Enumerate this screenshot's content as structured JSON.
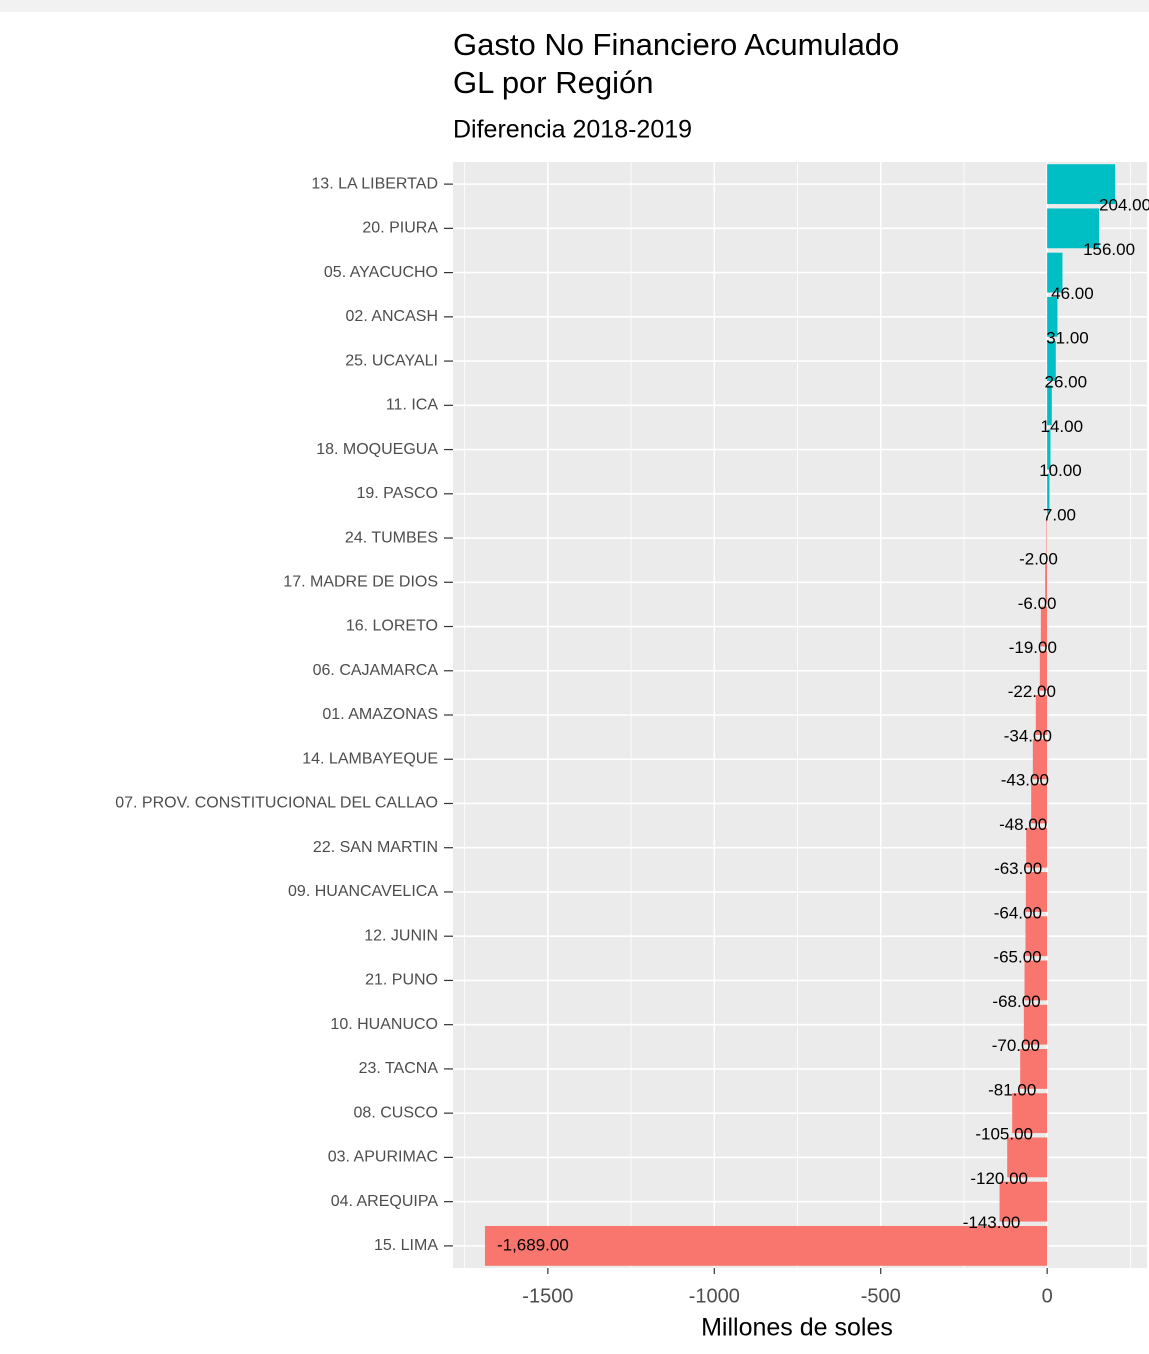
{
  "chart_data": {
    "type": "barh",
    "title": [
      "Gasto No Financiero Acumulado",
      "GL por Región"
    ],
    "subtitle": "Diferencia 2018-2019",
    "x_label": "Millones de soles",
    "categories": [
      "13. LA LIBERTAD",
      "20. PIURA",
      "05. AYACUCHO",
      "02. ANCASH",
      "25. UCAYALI",
      "11. ICA",
      "18. MOQUEGUA",
      "19. PASCO",
      "24. TUMBES",
      "17. MADRE DE DIOS",
      "16. LORETO",
      "06. CAJAMARCA",
      "01. AMAZONAS",
      "14. LAMBAYEQUE",
      "07. PROV. CONSTITUCIONAL DEL CALLAO",
      "22. SAN MARTIN",
      "09. HUANCAVELICA",
      "12. JUNIN",
      "21. PUNO",
      "10. HUANUCO",
      "23. TACNA",
      "08. CUSCO",
      "03. APURIMAC",
      "04. AREQUIPA",
      "15. LIMA"
    ],
    "values": [
      204,
      156,
      46,
      31,
      26,
      14,
      10,
      7,
      -2,
      -6,
      -19,
      -22,
      -34,
      -43,
      -48,
      -63,
      -64,
      -65,
      -68,
      -70,
      -81,
      -105,
      -120,
      -143,
      -1689
    ],
    "value_labels": [
      "204.00",
      "156.00",
      "46.00",
      "31.00",
      "26.00",
      "14.00",
      "10.00",
      "7.00",
      "-2.00",
      "-6.00",
      "-19.00",
      "-22.00",
      "-34.00",
      "-43.00",
      "-48.00",
      "-63.00",
      "-64.00",
      "-65.00",
      "-68.00",
      "-70.00",
      "-81.00",
      "-105.00",
      "-120.00",
      "-143.00",
      "-1,689.00"
    ],
    "colors": [
      "#00BFC4",
      "#00BFC4",
      "#00BFC4",
      "#00BFC4",
      "#00BFC4",
      "#00BFC4",
      "#00BFC4",
      "#00BFC4",
      "#F8766D",
      "#F8766D",
      "#F8766D",
      "#F8766D",
      "#F8766D",
      "#F8766D",
      "#F8766D",
      "#F8766D",
      "#F8766D",
      "#F8766D",
      "#F8766D",
      "#F8766D",
      "#F8766D",
      "#F8766D",
      "#F8766D",
      "#F8766D",
      "#F8766D"
    ],
    "xlim": [
      -1785,
      300
    ],
    "xticks": [
      -1500,
      -1000,
      -500,
      0
    ],
    "grid": true
  }
}
